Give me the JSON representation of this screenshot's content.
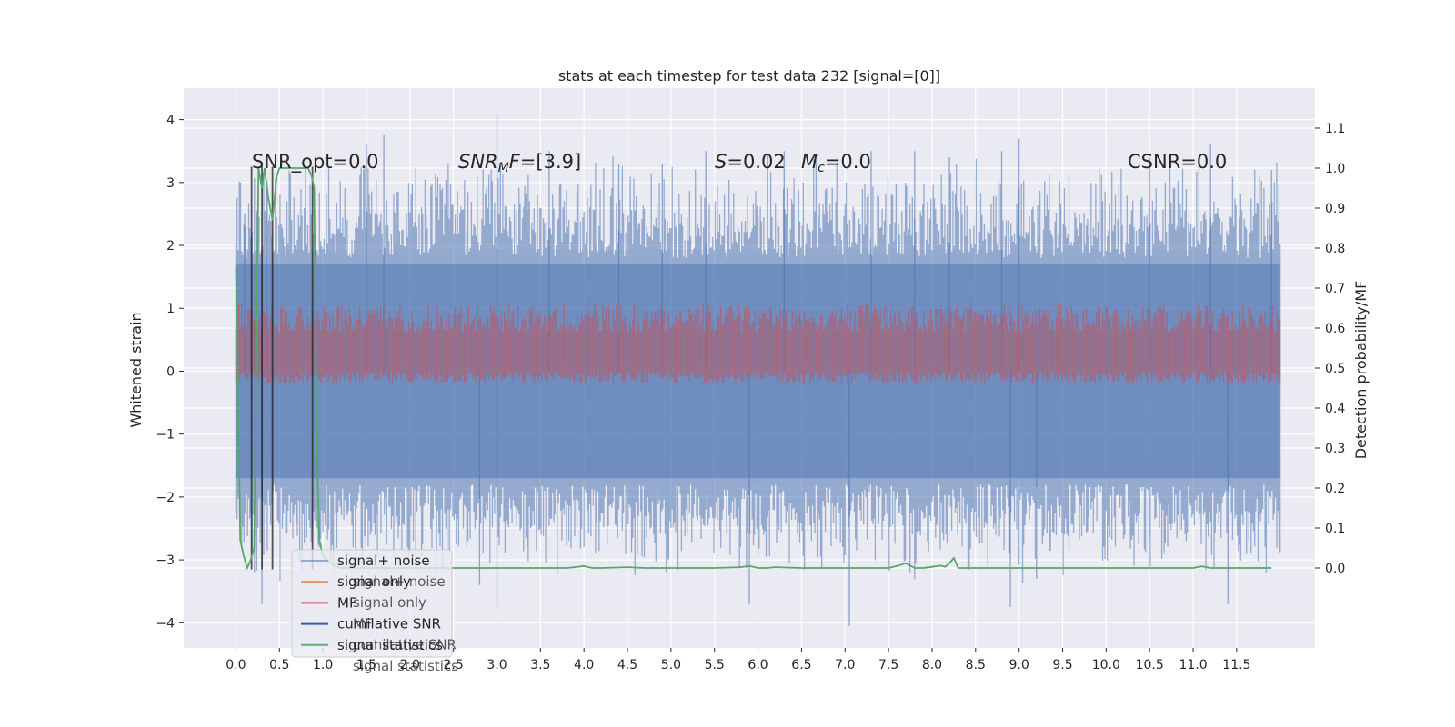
{
  "chart_data": {
    "type": "line",
    "title": "stats at each timestep for test data 232 [signal=[0]]",
    "ylabel": "Whitened strain",
    "ylabel_right": "Detection probability/MF",
    "xlim": [
      -0.6,
      12.4
    ],
    "ylim": [
      -4.4,
      4.5
    ],
    "ylim_right": [
      -0.2,
      1.2
    ],
    "x_ticks": [
      "0.0",
      "0.5",
      "1.0",
      "1.5",
      "2.0",
      "2.5",
      "3.0",
      "3.5",
      "4.0",
      "4.5",
      "5.0",
      "5.5",
      "6.0",
      "6.5",
      "7.0",
      "7.5",
      "8.0",
      "8.5",
      "9.0",
      "9.5",
      "10.0",
      "10.5",
      "11.0",
      "11.5"
    ],
    "y_ticks_left": [
      "4",
      "3",
      "2",
      "1",
      "0",
      "−1",
      "−2",
      "−3",
      "−4"
    ],
    "y_ticks_right": [
      "1.1",
      "1.0",
      "0.9",
      "0.8",
      "0.7",
      "0.6",
      "0.5",
      "0.4",
      "0.3",
      "0.2",
      "0.1",
      "0.0"
    ],
    "annotations": {
      "snr_opt": "SNR_opt=0.0",
      "snr_mf": "SNR",
      "snr_mf_sub": "M",
      "snr_mf_rest": "F=[3.9]",
      "s_stat_sym": "S",
      "s_stat_val": "=0.02",
      "mc_sym": "M",
      "mc_sub": "c",
      "mc_val": "=0.0",
      "csnr": "CSNR=0.0"
    },
    "legend": {
      "placement": "lower-left",
      "entries": [
        "signal+ noise",
        "signal only",
        "MF",
        "cumilative SNR",
        "signal statistics"
      ],
      "ghost_entries": [
        "signal+ noise",
        "signal only",
        "MF",
        "cumilative SNR",
        "signal statistics"
      ]
    },
    "series": [
      {
        "name": "signal+ noise",
        "axis": "left",
        "color": "#4c72b0",
        "style": "dense-noise",
        "x_range": [
          0.0,
          12.0
        ],
        "core_range": [
          -1.7,
          1.7
        ],
        "envelope": [
          -3.4,
          3.5
        ],
        "outliers": [
          [
            0.1,
            2.5
          ],
          [
            0.3,
            -3.7
          ],
          [
            0.35,
            2.9
          ],
          [
            1.5,
            3.6
          ],
          [
            1.7,
            3.75
          ],
          [
            2.8,
            -3.4
          ],
          [
            3.0,
            4.1
          ],
          [
            3.0,
            -3.75
          ],
          [
            3.6,
            3.5
          ],
          [
            4.4,
            3.3
          ],
          [
            4.9,
            3.3
          ],
          [
            5.4,
            3.5
          ],
          [
            5.9,
            -3.7
          ],
          [
            6.3,
            3.5
          ],
          [
            7.05,
            -4.05
          ],
          [
            7.3,
            3.5
          ],
          [
            7.8,
            3.5
          ],
          [
            8.2,
            3.4
          ],
          [
            8.8,
            3.5
          ],
          [
            8.9,
            -3.75
          ],
          [
            9.0,
            3.7
          ],
          [
            9.2,
            -3.3
          ],
          [
            10.5,
            3.4
          ],
          [
            11.2,
            3.6
          ],
          [
            11.4,
            -3.7
          ],
          [
            11.9,
            3.2
          ]
        ]
      },
      {
        "name": "signal only",
        "axis": "left",
        "color": "#dd8452",
        "values": []
      },
      {
        "name": "MF",
        "axis": "right",
        "color": "#c44e52",
        "style": "dense-band",
        "x_range": [
          0.0,
          12.0
        ],
        "band": [
          0.46,
          0.66
        ]
      },
      {
        "name": "cumilative SNR",
        "axis": "left",
        "color": "#4c72b0",
        "values": []
      },
      {
        "name": "signal statistics",
        "axis": "right",
        "color": "#55a868",
        "x": [
          0.0,
          0.02,
          0.05,
          0.09,
          0.13,
          0.17,
          0.21,
          0.26,
          0.3,
          0.33,
          0.37,
          0.42,
          0.47,
          0.5,
          0.55,
          0.6,
          0.66,
          0.72,
          0.78,
          0.83,
          0.87,
          0.9,
          0.93,
          0.96,
          1.0,
          1.05,
          1.1,
          1.2,
          1.5,
          2.0,
          2.5,
          3.0,
          3.5,
          3.8,
          3.9,
          4.0,
          4.05,
          4.1,
          4.2,
          4.5,
          4.7,
          5.0,
          5.5,
          5.8,
          5.9,
          6.0,
          6.1,
          6.2,
          6.5,
          7.0,
          7.5,
          7.6,
          7.7,
          7.8,
          7.9,
          8.0,
          8.1,
          8.15,
          8.2,
          8.25,
          8.3,
          8.5,
          9.0,
          9.5,
          10.0,
          10.5,
          11.0,
          11.1,
          11.2,
          11.5,
          11.9
        ],
        "values": [
          0.75,
          0.55,
          0.07,
          0.03,
          0.0,
          0.02,
          0.05,
          1.0,
          0.95,
          1.0,
          0.93,
          0.87,
          0.98,
          1.0,
          1.0,
          1.0,
          1.0,
          1.0,
          1.0,
          1.0,
          0.98,
          0.95,
          0.3,
          0.07,
          0.03,
          0.02,
          0.01,
          0.0,
          0.0,
          0.0,
          0.0,
          0.0,
          0.0,
          0.0,
          0.002,
          0.005,
          0.002,
          0.0,
          0.0,
          0.002,
          0.0,
          0.0,
          0.0,
          0.002,
          0.005,
          0.0,
          0.0,
          0.002,
          0.0,
          0.0,
          0.0,
          0.005,
          0.012,
          0.0,
          0.0,
          0.003,
          0.006,
          0.003,
          0.012,
          0.025,
          0.0,
          0.0,
          0.0,
          0.0,
          0.0,
          0.0,
          0.0,
          0.004,
          0.0,
          0.0,
          0.0
        ]
      },
      {
        "name": "markers",
        "axis": "left",
        "color": "#1f1f1f",
        "style": "vlines",
        "x": [
          0.18,
          0.3,
          0.42,
          0.88
        ],
        "ymin": -3.15,
        "ymax": 3.25
      }
    ]
  }
}
